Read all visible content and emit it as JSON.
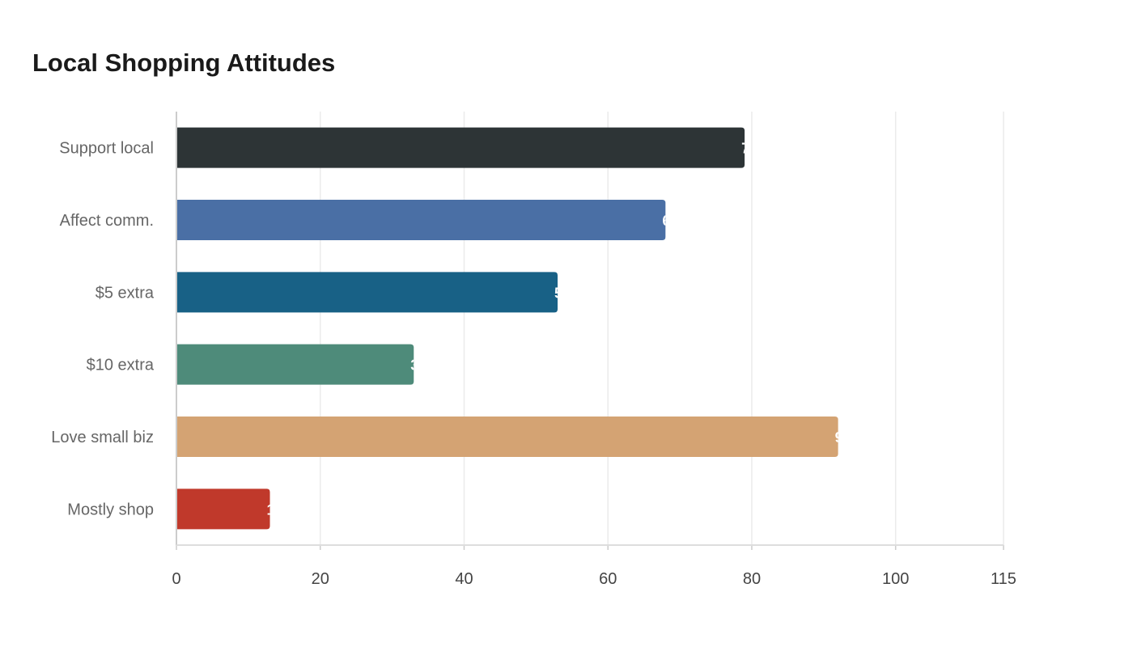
{
  "chart_data": {
    "type": "bar",
    "orientation": "horizontal",
    "title": "Local Shopping Attitudes",
    "categories": [
      "Support local",
      "Affect comm.",
      "$5 extra",
      "$10 extra",
      "Love small biz",
      "Mostly shop"
    ],
    "values": [
      79,
      68,
      53,
      33,
      92,
      13
    ],
    "colors": [
      "#2d3436",
      "#4a6fa5",
      "#186186",
      "#4e8b7a",
      "#d4a373",
      "#c0392b"
    ],
    "xlim": [
      0,
      115
    ],
    "xticks": [
      "0",
      "20",
      "40",
      "60",
      "80",
      "100",
      "115"
    ],
    "grid": true,
    "legend": "none"
  }
}
